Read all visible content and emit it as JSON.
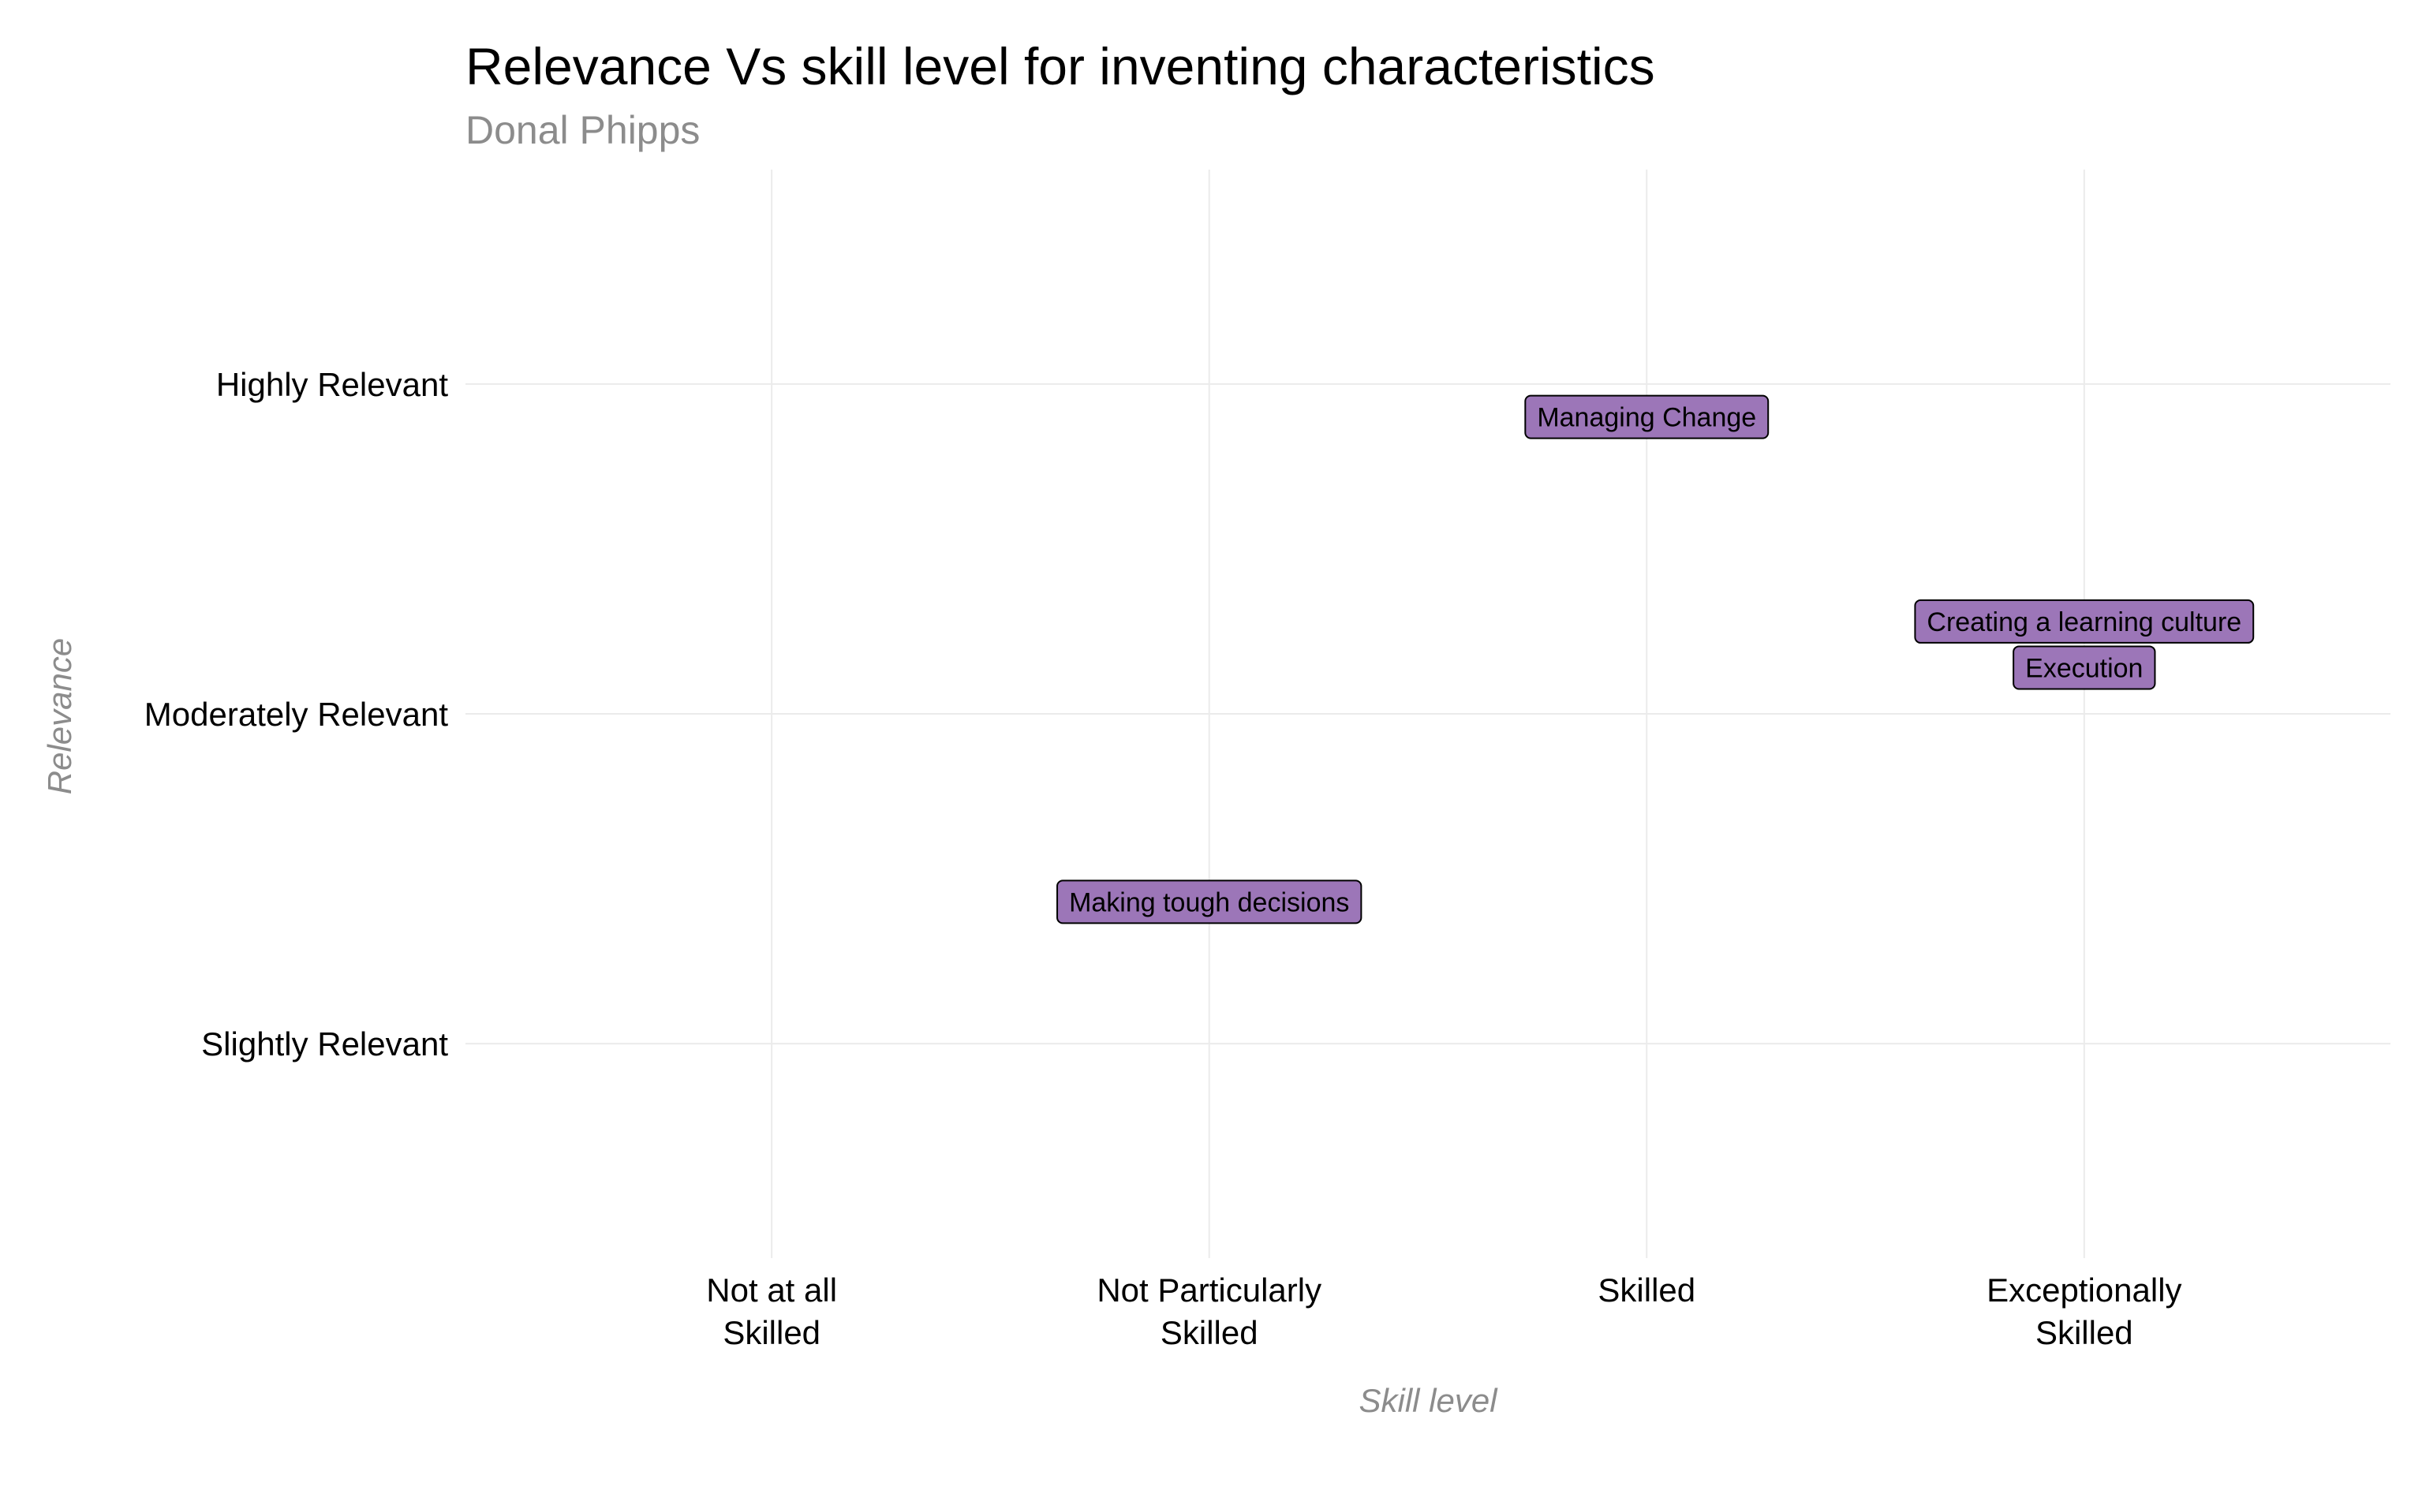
{
  "chart_data": {
    "type": "scatter",
    "title": "Relevance Vs skill level for inventing characteristics",
    "subtitle": "Donal Phipps",
    "xlabel": "Skill level",
    "ylabel": "Relevance",
    "x_categories": [
      "Not at all\nSkilled",
      "Not Particularly\nSkilled",
      "Skilled",
      "Exceptionally\nSkilled"
    ],
    "y_categories": [
      "Slightly Relevant",
      "Moderately Relevant",
      "Highly Relevant"
    ],
    "xlim": [
      0.3,
      4.7
    ],
    "ylim": [
      0.35,
      3.65
    ],
    "grid": true,
    "legend": "none",
    "label_fill": "#9c76b8",
    "points": [
      {
        "label": "Managing Change",
        "x": 3,
        "y": 2.9
      },
      {
        "label": "Creating a learning culture",
        "x": 4,
        "y": 2.28
      },
      {
        "label": "Execution",
        "x": 4,
        "y": 2.14
      },
      {
        "label": "Making tough decisions",
        "x": 2,
        "y": 1.43
      }
    ]
  }
}
